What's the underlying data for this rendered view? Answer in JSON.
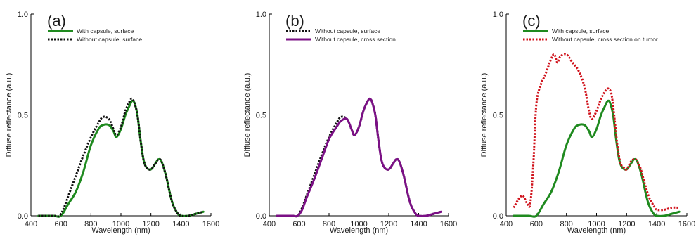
{
  "chart_data": [
    {
      "type": "line",
      "panel_label": "(a)",
      "xlabel": "Wavelength (nm)",
      "ylabel": "Diffuse reflectance (a.u.)",
      "xlim": [
        400,
        1600
      ],
      "ylim": [
        0,
        1
      ],
      "xticks": [
        "400",
        "600",
        "800",
        "1000",
        "1200",
        "1400",
        "1600"
      ],
      "yticks": [
        "0.0",
        "0.5",
        "1.0"
      ],
      "legend_position": "top-left",
      "series": [
        {
          "name": "With capsule, surface",
          "color": "#1f8a1f",
          "style": "solid",
          "x": [
            450,
            550,
            600,
            650,
            700,
            750,
            800,
            850,
            880,
            920,
            950,
            970,
            1000,
            1030,
            1060,
            1075,
            1090,
            1110,
            1130,
            1150,
            1170,
            1200,
            1230,
            1250,
            1270,
            1300,
            1330,
            1350,
            1380,
            1400,
            1450,
            1500,
            1550
          ],
          "y": [
            0.0,
            0.0,
            0.0,
            0.06,
            0.12,
            0.22,
            0.35,
            0.43,
            0.45,
            0.45,
            0.42,
            0.39,
            0.43,
            0.5,
            0.55,
            0.57,
            0.56,
            0.5,
            0.38,
            0.28,
            0.24,
            0.23,
            0.26,
            0.28,
            0.27,
            0.2,
            0.1,
            0.05,
            0.01,
            0.0,
            0.0,
            0.01,
            0.02
          ]
        },
        {
          "name": "Without capsule, surface",
          "color": "#111111",
          "style": "dotted",
          "x": [
            450,
            550,
            590,
            620,
            650,
            700,
            750,
            800,
            850,
            880,
            920,
            950,
            970,
            1000,
            1030,
            1060,
            1075,
            1090,
            1110,
            1130,
            1150,
            1170,
            1200,
            1230,
            1250,
            1270,
            1300,
            1330,
            1350,
            1380,
            1400,
            1450,
            1500,
            1550
          ],
          "y": [
            0.0,
            0.0,
            0.0,
            0.04,
            0.1,
            0.2,
            0.3,
            0.39,
            0.46,
            0.49,
            0.48,
            0.43,
            0.4,
            0.44,
            0.52,
            0.57,
            0.58,
            0.56,
            0.5,
            0.38,
            0.28,
            0.24,
            0.23,
            0.26,
            0.28,
            0.27,
            0.2,
            0.1,
            0.05,
            0.01,
            0.0,
            0.0,
            0.01,
            0.02
          ]
        }
      ]
    },
    {
      "type": "line",
      "panel_label": "(b)",
      "xlabel": "Wavelength (nm)",
      "ylabel": "Diffuse reflectance (a.u.)",
      "xlim": [
        400,
        1600
      ],
      "ylim": [
        0,
        1
      ],
      "xticks": [
        "400",
        "600",
        "800",
        "1000",
        "1200",
        "1400",
        "1600"
      ],
      "yticks": [
        "0.0",
        "0.5",
        "1.0"
      ],
      "legend_position": "top-left",
      "series": [
        {
          "name": "Without capsule, surface",
          "color": "#111111",
          "style": "dotted",
          "x": [
            450,
            550,
            590,
            620,
            650,
            700,
            750,
            800,
            850,
            880,
            920,
            950,
            970,
            1000,
            1030,
            1060,
            1075,
            1090,
            1110,
            1130,
            1150,
            1170,
            1200,
            1230,
            1250,
            1270,
            1300,
            1330,
            1350,
            1380,
            1400,
            1450,
            1500,
            1550
          ],
          "y": [
            0.0,
            0.0,
            0.0,
            0.04,
            0.1,
            0.2,
            0.3,
            0.39,
            0.46,
            0.49,
            0.48,
            0.43,
            0.4,
            0.44,
            0.52,
            0.57,
            0.58,
            0.56,
            0.5,
            0.38,
            0.28,
            0.24,
            0.23,
            0.26,
            0.28,
            0.27,
            0.2,
            0.1,
            0.05,
            0.01,
            0.0,
            0.0,
            0.01,
            0.02
          ]
        },
        {
          "name": "Without capsule, cross section",
          "color": "#7b1085",
          "style": "solid",
          "x": [
            450,
            550,
            590,
            620,
            650,
            700,
            750,
            800,
            850,
            880,
            920,
            950,
            970,
            1000,
            1030,
            1060,
            1075,
            1090,
            1110,
            1130,
            1150,
            1170,
            1200,
            1230,
            1250,
            1270,
            1300,
            1330,
            1350,
            1380,
            1400,
            1450,
            1500,
            1550
          ],
          "y": [
            0.0,
            0.0,
            0.0,
            0.03,
            0.09,
            0.18,
            0.28,
            0.38,
            0.44,
            0.47,
            0.48,
            0.43,
            0.4,
            0.44,
            0.52,
            0.57,
            0.58,
            0.56,
            0.5,
            0.38,
            0.28,
            0.24,
            0.23,
            0.26,
            0.28,
            0.27,
            0.2,
            0.1,
            0.05,
            0.01,
            0.0,
            0.0,
            0.01,
            0.02
          ]
        }
      ]
    },
    {
      "type": "line",
      "panel_label": "(c)",
      "xlabel": "Wavelength (nm)",
      "ylabel": "Diffuse reflectance (a.u.)",
      "xlim": [
        400,
        1600
      ],
      "ylim": [
        0,
        1
      ],
      "xticks": [
        "400",
        "600",
        "800",
        "1000",
        "1200",
        "1400",
        "1600"
      ],
      "yticks": [
        "0.0",
        "0.5",
        "1.0"
      ],
      "legend_position": "top-left",
      "series": [
        {
          "name": "With capsule, surface",
          "color": "#1f8a1f",
          "style": "solid",
          "x": [
            450,
            550,
            600,
            650,
            700,
            750,
            800,
            850,
            880,
            920,
            950,
            970,
            1000,
            1030,
            1060,
            1075,
            1090,
            1110,
            1130,
            1150,
            1170,
            1200,
            1230,
            1250,
            1270,
            1300,
            1330,
            1350,
            1380,
            1400,
            1450,
            1500,
            1550
          ],
          "y": [
            0.0,
            0.0,
            0.0,
            0.06,
            0.12,
            0.22,
            0.35,
            0.43,
            0.45,
            0.45,
            0.42,
            0.39,
            0.43,
            0.5,
            0.55,
            0.57,
            0.56,
            0.5,
            0.38,
            0.28,
            0.24,
            0.23,
            0.26,
            0.28,
            0.27,
            0.2,
            0.1,
            0.05,
            0.01,
            0.0,
            0.0,
            0.01,
            0.02
          ]
        },
        {
          "name": "Without capsule, cross section on tumor",
          "color": "#d0121b",
          "style": "dotted",
          "x": [
            450,
            480,
            510,
            540,
            560,
            580,
            600,
            630,
            660,
            700,
            720,
            740,
            760,
            800,
            840,
            880,
            920,
            950,
            970,
            1000,
            1030,
            1060,
            1080,
            1100,
            1120,
            1140,
            1160,
            1180,
            1200,
            1230,
            1260,
            1290,
            1320,
            1350,
            1380,
            1400,
            1450,
            1500,
            1550
          ],
          "y": [
            0.04,
            0.08,
            0.1,
            0.06,
            0.06,
            0.25,
            0.55,
            0.65,
            0.7,
            0.78,
            0.8,
            0.76,
            0.79,
            0.8,
            0.76,
            0.72,
            0.64,
            0.52,
            0.48,
            0.52,
            0.58,
            0.62,
            0.63,
            0.6,
            0.48,
            0.34,
            0.26,
            0.24,
            0.23,
            0.27,
            0.28,
            0.24,
            0.16,
            0.09,
            0.05,
            0.03,
            0.03,
            0.04,
            0.04
          ]
        }
      ]
    }
  ]
}
